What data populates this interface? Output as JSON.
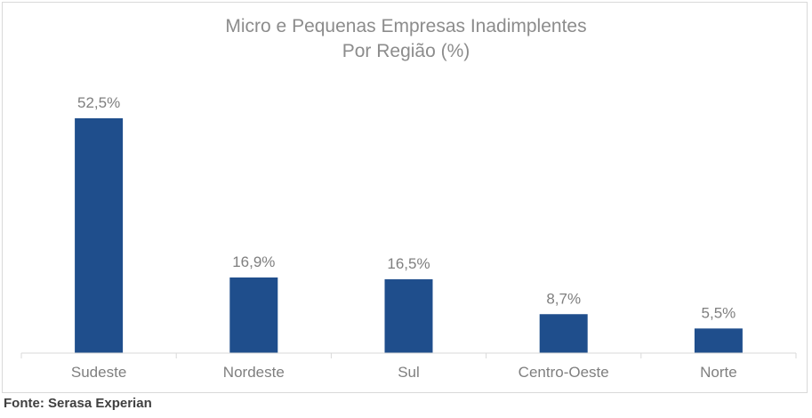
{
  "chart_data": {
    "type": "bar",
    "title": "Micro e Pequenas Empresas Inadimplentes",
    "subtitle": "Por Região (%)",
    "categories": [
      "Sudeste",
      "Nordeste",
      "Sul",
      "Centro-Oeste",
      "Norte"
    ],
    "values": [
      52.5,
      16.9,
      16.5,
      8.7,
      5.5
    ],
    "data_labels": [
      "52,5%",
      "16,9%",
      "16,5%",
      "8,7%",
      "5,5%"
    ],
    "xlabel": "",
    "ylabel": "",
    "ylim": [
      0,
      52.5
    ],
    "grid": false,
    "legend": "none",
    "bar_color": "#1f4e8c"
  },
  "source": "Fonte: Serasa Experian"
}
